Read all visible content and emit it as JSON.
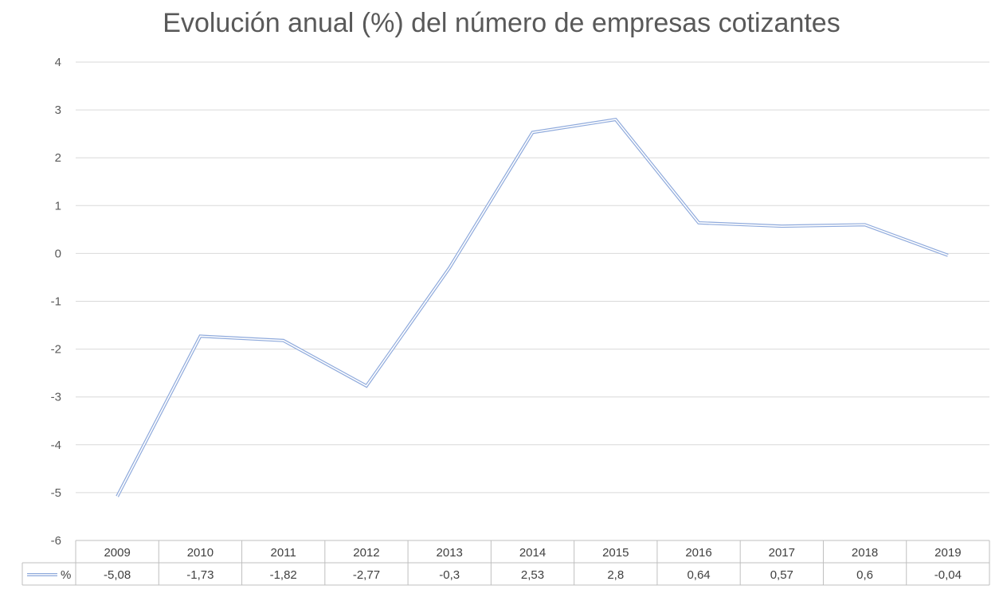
{
  "chart_data": {
    "type": "line",
    "title": "Evolución anual (%) del número de empresas cotizantes",
    "categories": [
      "2009",
      "2010",
      "2011",
      "2012",
      "2013",
      "2014",
      "2015",
      "2016",
      "2017",
      "2018",
      "2019"
    ],
    "series": [
      {
        "name": "%",
        "values": [
          -5.08,
          -1.73,
          -1.82,
          -2.77,
          -0.3,
          2.53,
          2.8,
          0.64,
          0.57,
          0.6,
          -0.04
        ],
        "labels": [
          "-5,08",
          "-1,73",
          "-1,82",
          "-2,77",
          "-0,3",
          "2,53",
          "2,8",
          "0,64",
          "0,57",
          "0,6",
          "-0,04"
        ],
        "color": "#8FAADC"
      }
    ],
    "ylim": [
      -6,
      4
    ],
    "yticks": [
      4,
      3,
      2,
      1,
      0,
      -1,
      -2,
      -3,
      -4,
      -5,
      -6
    ],
    "xlabel": "",
    "ylabel": "",
    "grid": true,
    "legend": "data-table",
    "data_table": true,
    "colors": {
      "grid": "#D9D9D9",
      "table_border": "#BFBFBF",
      "title": "#595959"
    }
  }
}
